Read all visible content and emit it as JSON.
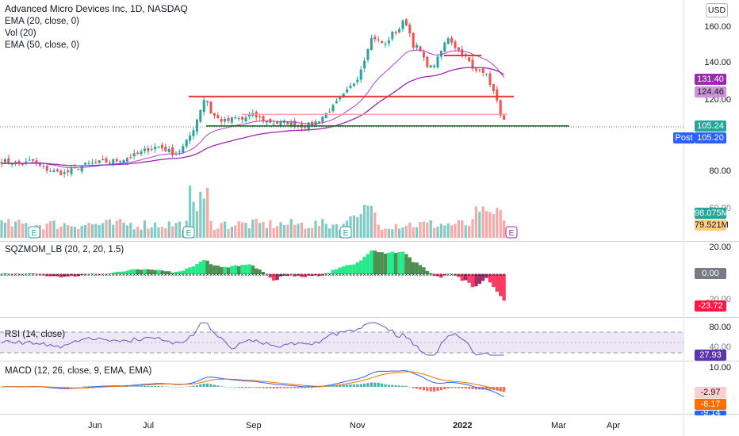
{
  "header": {
    "title": "Advanced Micro Devices Inc, 1D, NASDAQ",
    "indicators": [
      "EMA (20, close, 0)",
      "Vol (20)",
      "EMA (50, close, 0)"
    ],
    "currency": "USD"
  },
  "panes": {
    "sqz_title": "SQZMOM_LB (20, 2, 20, 1.5)",
    "rsi_title": "RSI (14, close)",
    "macd_title": "MACD (12, 26, close, 9, EMA, EMA)"
  },
  "price_axis": {
    "ticks": [
      "160.00",
      "140.00",
      "120.00",
      "80.00"
    ],
    "vol_tick": "60.00",
    "sqz_ticks": [
      "20.00",
      "-20.00"
    ],
    "rsi_ticks": [
      "80.00",
      "40.00"
    ],
    "macd_ticks": [
      "10.00"
    ]
  },
  "tags": {
    "ema50": "131.40",
    "level": "124.46",
    "last": "105.24",
    "post_label": "Post",
    "post": "105.20",
    "vol": "98.075M",
    "vol_ma": "79.521M",
    "sqz_zero": "0.00",
    "sqz": "-23.72",
    "rsi": "27.93",
    "macd_hist": "-2.97",
    "macd_signal": "-6.17",
    "macd": "-9.14"
  },
  "x_axis": [
    "Jun",
    "Jul",
    "Sep",
    "Nov",
    "2022",
    "Mar",
    "Apr"
  ],
  "earnings_marker": "E",
  "colors": {
    "up": "#26a69a",
    "down": "#ef5350",
    "ema20": "#b23fd0",
    "ema50": "#9c27b0",
    "resistance": "#e53935",
    "support": "#1b5e20",
    "rsi": "#5e5cc6",
    "macd": "#2962ff",
    "signal": "#ff6d00",
    "post": "#2962ff"
  },
  "chart_data": {
    "type": "candlestick",
    "title": "Advanced Micro Devices Inc, 1D, NASDAQ",
    "price_range": [
      58,
      167
    ],
    "horizontal_levels": [
      {
        "price": 121,
        "color": "#e53935"
      },
      {
        "price": 111,
        "color": "#ef9a9a"
      },
      {
        "price": 104.5,
        "color": "#1b5e20"
      },
      {
        "price": 144,
        "color": "#e53935"
      }
    ],
    "close_path": [
      {
        "x": 0,
        "y": 85
      },
      {
        "x": 16,
        "y": 84
      },
      {
        "x": 30,
        "y": 83
      },
      {
        "x": 40,
        "y": 85.5
      },
      {
        "x": 50,
        "y": 82
      },
      {
        "x": 60,
        "y": 80
      },
      {
        "x": 72,
        "y": 78.5
      },
      {
        "x": 82,
        "y": 78
      },
      {
        "x": 96,
        "y": 80.5
      },
      {
        "x": 110,
        "y": 83
      },
      {
        "x": 125,
        "y": 84
      },
      {
        "x": 140,
        "y": 84.5
      },
      {
        "x": 155,
        "y": 86
      },
      {
        "x": 170,
        "y": 88
      },
      {
        "x": 180,
        "y": 90
      },
      {
        "x": 188,
        "y": 92
      },
      {
        "x": 200,
        "y": 93
      },
      {
        "x": 210,
        "y": 91
      },
      {
        "x": 220,
        "y": 89
      },
      {
        "x": 228,
        "y": 91
      },
      {
        "x": 236,
        "y": 96
      },
      {
        "x": 243,
        "y": 102
      },
      {
        "x": 249,
        "y": 109
      },
      {
        "x": 255,
        "y": 117
      },
      {
        "x": 259,
        "y": 121.5
      },
      {
        "x": 266,
        "y": 112
      },
      {
        "x": 276,
        "y": 108
      },
      {
        "x": 286,
        "y": 107
      },
      {
        "x": 296,
        "y": 109
      },
      {
        "x": 306,
        "y": 108
      },
      {
        "x": 316,
        "y": 111
      },
      {
        "x": 326,
        "y": 109
      },
      {
        "x": 338,
        "y": 107
      },
      {
        "x": 350,
        "y": 106
      },
      {
        "x": 362,
        "y": 106.5
      },
      {
        "x": 374,
        "y": 105
      },
      {
        "x": 384,
        "y": 104.5
      },
      {
        "x": 394,
        "y": 105.5
      },
      {
        "x": 402,
        "y": 108
      },
      {
        "x": 410,
        "y": 111
      },
      {
        "x": 420,
        "y": 115
      },
      {
        "x": 430,
        "y": 120
      },
      {
        "x": 440,
        "y": 125
      },
      {
        "x": 450,
        "y": 131
      },
      {
        "x": 458,
        "y": 140
      },
      {
        "x": 464,
        "y": 149
      },
      {
        "x": 470,
        "y": 155
      },
      {
        "x": 478,
        "y": 152
      },
      {
        "x": 486,
        "y": 150
      },
      {
        "x": 494,
        "y": 156
      },
      {
        "x": 502,
        "y": 158
      },
      {
        "x": 510,
        "y": 164
      },
      {
        "x": 515,
        "y": 160
      },
      {
        "x": 520,
        "y": 150
      },
      {
        "x": 528,
        "y": 148
      },
      {
        "x": 536,
        "y": 140
      },
      {
        "x": 544,
        "y": 137
      },
      {
        "x": 552,
        "y": 142
      },
      {
        "x": 560,
        "y": 150
      },
      {
        "x": 566,
        "y": 155
      },
      {
        "x": 572,
        "y": 150
      },
      {
        "x": 580,
        "y": 146
      },
      {
        "x": 586,
        "y": 144
      },
      {
        "x": 592,
        "y": 140
      },
      {
        "x": 598,
        "y": 134
      },
      {
        "x": 604,
        "y": 138
      },
      {
        "x": 610,
        "y": 135
      },
      {
        "x": 616,
        "y": 131
      },
      {
        "x": 622,
        "y": 124
      },
      {
        "x": 628,
        "y": 116
      },
      {
        "x": 634,
        "y": 108
      },
      {
        "x": 638,
        "y": 105.2
      }
    ]
  }
}
